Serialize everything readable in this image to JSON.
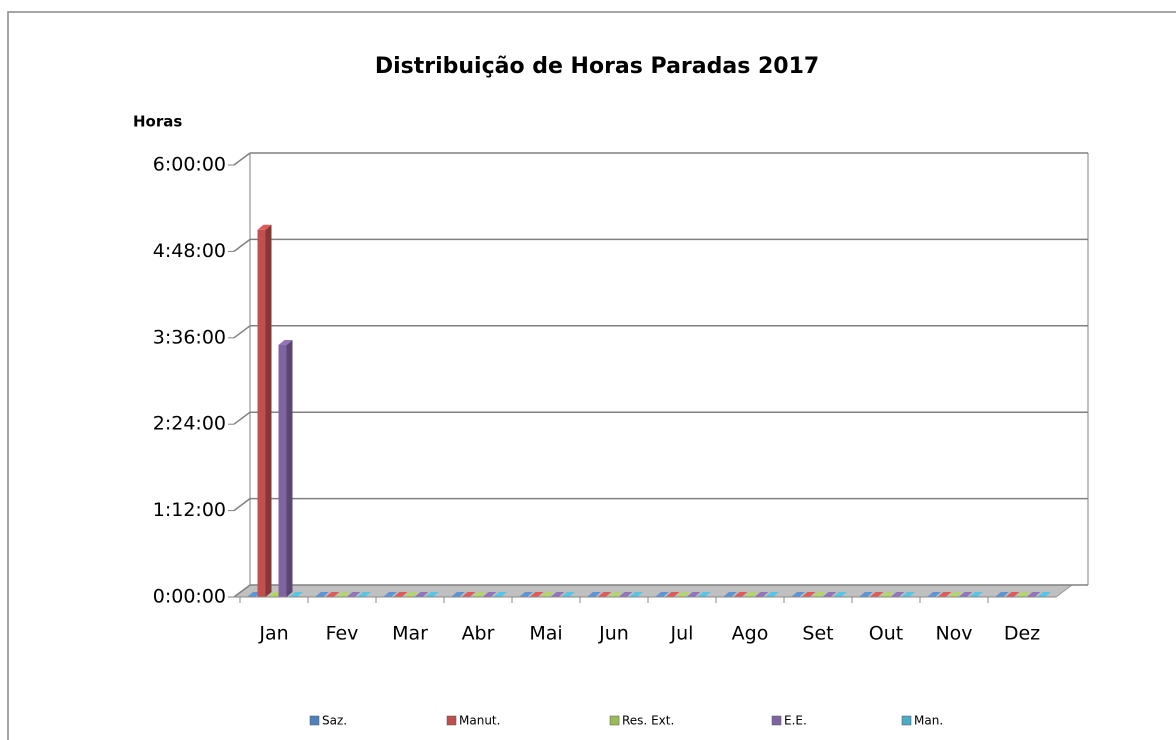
{
  "chart_data": {
    "type": "bar3d",
    "title": "Distribuição de Horas Paradas 2017",
    "y_label": "Horas",
    "categories": [
      "Jan",
      "Fev",
      "Mar",
      "Abr",
      "Mai",
      "Jun",
      "Jul",
      "Ago",
      "Set",
      "Out",
      "Nov",
      "Dez"
    ],
    "series": [
      {
        "name": "Saz.",
        "color": "#4f81bd",
        "values": [
          0,
          0,
          0,
          0,
          0,
          0,
          0,
          0,
          0,
          0,
          0,
          0
        ]
      },
      {
        "name": "Manut.",
        "color": "#c0504d",
        "values": [
          5.1,
          0,
          0,
          0,
          0,
          0,
          0,
          0,
          0,
          0,
          0,
          0
        ]
      },
      {
        "name": "Res. Ext.",
        "color": "#9bbb59",
        "values": [
          0,
          0,
          0,
          0,
          0,
          0,
          0,
          0,
          0,
          0,
          0,
          0
        ]
      },
      {
        "name": "E.E.",
        "color": "#8064a2",
        "values": [
          3.5,
          0,
          0,
          0,
          0,
          0,
          0,
          0,
          0,
          0,
          0,
          0
        ]
      },
      {
        "name": "Man.",
        "color": "#4bacc6",
        "values": [
          0,
          0,
          0,
          0,
          0,
          0,
          0,
          0,
          0,
          0,
          0,
          0
        ]
      }
    ],
    "ylim": [
      0,
      6
    ],
    "yticks": [
      {
        "value": 0,
        "label": "0:00:00"
      },
      {
        "value": 1.2,
        "label": "1:12:00"
      },
      {
        "value": 2.4,
        "label": "2:24:00"
      },
      {
        "value": 3.6,
        "label": "3:36:00"
      },
      {
        "value": 4.8,
        "label": "4:48:00"
      },
      {
        "value": 6,
        "label": "6:00:00"
      }
    ],
    "grid": true,
    "legend": "bottom"
  }
}
